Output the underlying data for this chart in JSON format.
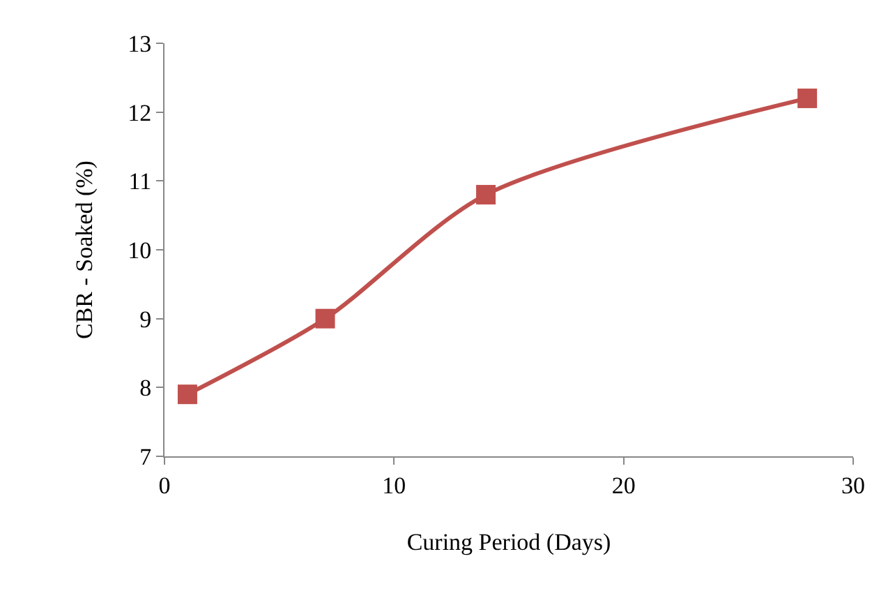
{
  "chart_data": {
    "type": "line",
    "xlabel": "Curing Period (Days)",
    "ylabel": "CBR - Soaked (%)",
    "x": [
      1,
      7,
      14,
      28
    ],
    "series": [
      {
        "color": "#c0504d",
        "values": [
          7.9,
          9.0,
          10.8,
          12.2
        ]
      }
    ],
    "xlim": [
      0,
      30
    ],
    "xticks": [
      0,
      10,
      20,
      30
    ],
    "ylim": [
      7,
      13
    ],
    "yticks": [
      7,
      8,
      9,
      10,
      11,
      12,
      13
    ],
    "marker": "square",
    "line_style": "solid"
  }
}
